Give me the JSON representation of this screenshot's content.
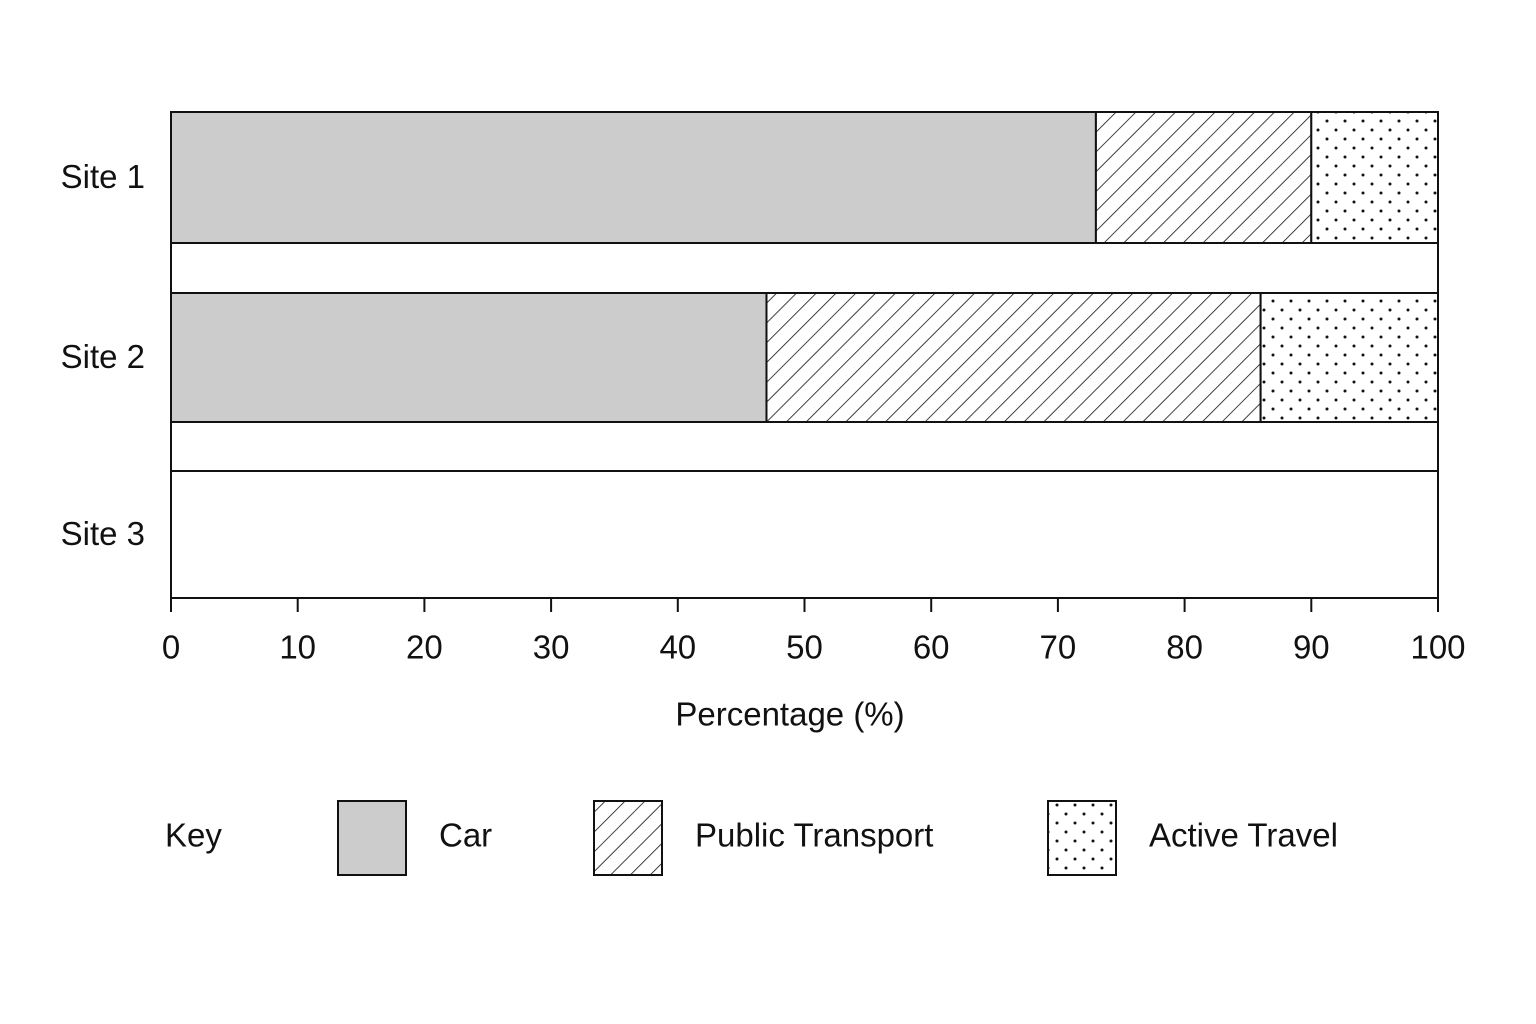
{
  "chart_data": {
    "type": "stacked-barh",
    "categories": [
      "Site 1",
      "Site 2",
      "Site 3"
    ],
    "series": [
      {
        "name": "Car",
        "color": "#cccccc",
        "pattern": "solid",
        "values": [
          73,
          47,
          null
        ]
      },
      {
        "name": "Public Transport",
        "color": "#ffffff",
        "pattern": "hatch",
        "values": [
          17,
          39,
          null
        ]
      },
      {
        "name": "Active Travel",
        "color": "#ffffff",
        "pattern": "dots",
        "values": [
          10,
          14,
          null
        ]
      }
    ],
    "xlabel": "Percentage (%)",
    "xlim": [
      0,
      100
    ],
    "xticks": [
      0,
      10,
      20,
      30,
      40,
      50,
      60,
      70,
      80,
      90,
      100
    ],
    "legend_title": "Key",
    "legend_position": "bottom"
  }
}
